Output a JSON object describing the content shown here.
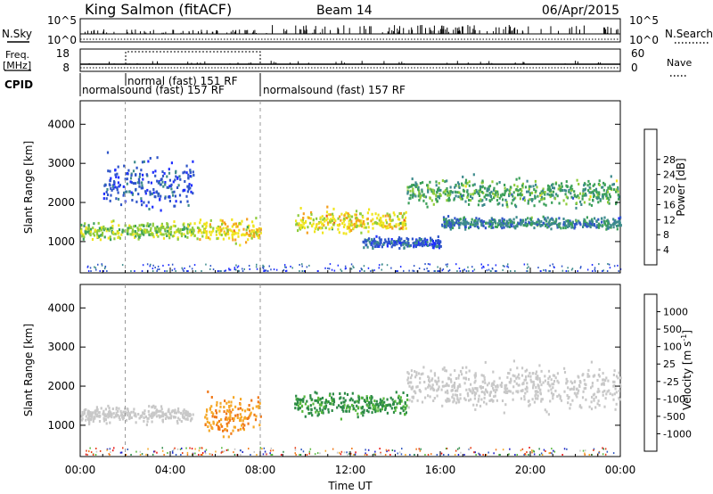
{
  "header": {
    "station": "King Salmon (fitACF)",
    "beam": "Beam 14",
    "date": "06/Apr/2015"
  },
  "params": {
    "nsky_label": "N.Sky",
    "nsearch_label": "N.Search",
    "left_ticks": [
      "10^5",
      "10^0"
    ],
    "right_ticks": [
      "10^5",
      "10^0"
    ],
    "freq_label_1": "Freq.",
    "freq_label_2": "[MHz]",
    "freq_ticks": [
      "18",
      "8"
    ],
    "nave_label": "Nave",
    "nave_ticks": [
      "60",
      "0"
    ],
    "cpid_label": "CPID",
    "cpid_modes": [
      {
        "text": "normalsound (fast) 157 RF",
        "start_hr": 0,
        "row": "lower"
      },
      {
        "text": "normal (fast) 151 RF",
        "start_hr": 2,
        "row": "upper"
      },
      {
        "text": "normalsound (fast) 157 RF",
        "start_hr": 8,
        "row": "lower"
      }
    ]
  },
  "power_colorbar": {
    "label": "Power [dB]",
    "ticks": [
      "4",
      "8",
      "12",
      "16",
      "20",
      "24",
      "28"
    ],
    "colors": [
      "#1e2dff",
      "#2f55c8",
      "#3c8a8c",
      "#3ca05a",
      "#8fcc3c",
      "#f0e51e",
      "#f5a01e",
      "#f06014",
      "#e82010"
    ]
  },
  "velocity_colorbar": {
    "label": "Velocity [m s-1]",
    "label_main": "Velocity [m s",
    "label_sup": "-1",
    "label_end": "]",
    "ticks": [
      "1000",
      "500",
      "100",
      "25",
      "-25",
      "-100",
      "-500",
      "-1000"
    ],
    "colors": [
      "#2020c8",
      "#3058c0",
      "#2c8a46",
      "#56b83c",
      "#c8c8c8",
      "#f5a828",
      "#f07818",
      "#e83c14",
      "#e81010"
    ]
  },
  "chart_data": [
    {
      "type": "heatmap",
      "panel": "power",
      "ylabel": "Slant Range [km]",
      "xlim": [
        0,
        24
      ],
      "ylim": [
        200,
        4600
      ],
      "yticks": [
        1000,
        2000,
        3000,
        4000
      ],
      "bands": [
        {
          "t0": 0.0,
          "t1": 5.0,
          "r_center": 1300,
          "r_width": 300,
          "value_db": 20
        },
        {
          "t0": 5.0,
          "t1": 8.0,
          "r_center": 1300,
          "r_width": 400,
          "value_db": 24
        },
        {
          "t0": 1.0,
          "t1": 5.0,
          "r_center": 2500,
          "r_width": 900,
          "value_db": 8
        },
        {
          "t0": 9.5,
          "t1": 14.5,
          "r_center": 1550,
          "r_width": 400,
          "value_db": 22
        },
        {
          "t0": 12.5,
          "t1": 16.0,
          "r_center": 1000,
          "r_width": 200,
          "value_db": 6
        },
        {
          "t0": 14.5,
          "t1": 24.0,
          "r_center": 2300,
          "r_width": 500,
          "value_db": 14
        },
        {
          "t0": 16.0,
          "t1": 24.0,
          "r_center": 1500,
          "r_width": 200,
          "value_db": 12
        }
      ]
    },
    {
      "type": "heatmap",
      "panel": "velocity",
      "ylabel": "Slant Range [km]",
      "xlabel": "Time UT",
      "xlim": [
        0,
        24
      ],
      "ylim": [
        200,
        4600
      ],
      "yticks": [
        1000,
        2000,
        3000,
        4000
      ],
      "xticks": [
        "00:00",
        "04:00",
        "08:00",
        "12:00",
        "16:00",
        "20:00",
        "00:00"
      ],
      "xtick_hours": [
        0,
        4,
        8,
        12,
        16,
        20,
        24
      ],
      "bands": [
        {
          "t0": 0.0,
          "t1": 5.0,
          "r_center": 1300,
          "r_width": 300,
          "value_ms": 0
        },
        {
          "t0": 5.5,
          "t1": 8.0,
          "r_center": 1300,
          "r_width": 700,
          "value_ms": -200
        },
        {
          "t0": 9.5,
          "t1": 14.5,
          "r_center": 1550,
          "r_width": 400,
          "value_ms": 150
        },
        {
          "t0": 14.5,
          "t1": 24.0,
          "r_center": 2000,
          "r_width": 800,
          "value_ms": 0
        }
      ]
    }
  ]
}
